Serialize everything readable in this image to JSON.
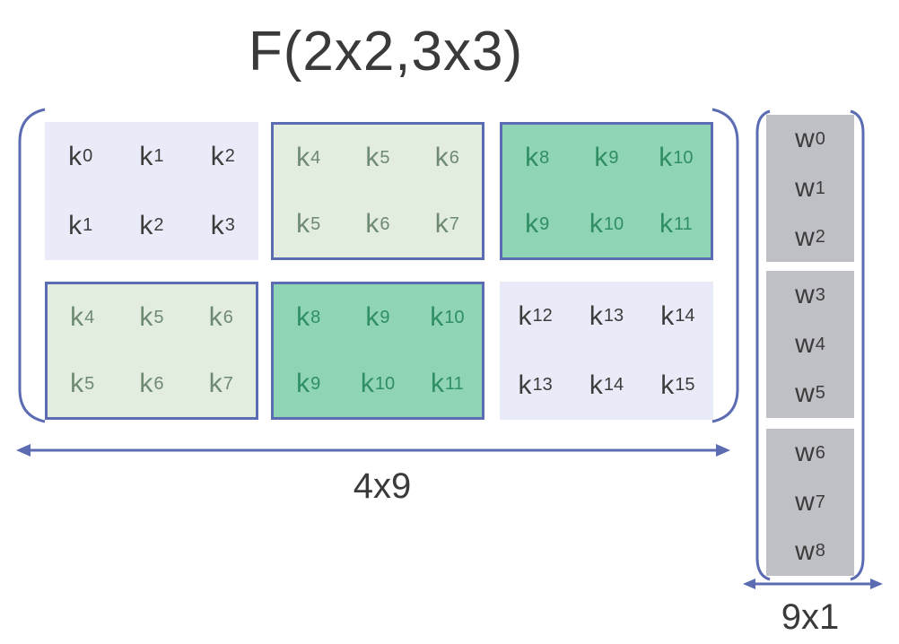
{
  "title": "F(2x2,3x3)",
  "matrix": {
    "dimension_label": "4x9",
    "rows": [
      [
        {
          "style": "plain",
          "cells": [
            [
              "k",
              "0"
            ],
            [
              "k",
              "1"
            ],
            [
              "k",
              "2"
            ],
            [
              "k",
              "1"
            ],
            [
              "k",
              "2"
            ],
            [
              "k",
              "3"
            ]
          ]
        },
        {
          "style": "light",
          "cells": [
            [
              "k",
              "4"
            ],
            [
              "k",
              "5"
            ],
            [
              "k",
              "6"
            ],
            [
              "k",
              "5"
            ],
            [
              "k",
              "6"
            ],
            [
              "k",
              "7"
            ]
          ]
        },
        {
          "style": "dark",
          "cells": [
            [
              "k",
              "8"
            ],
            [
              "k",
              "9"
            ],
            [
              "k",
              "10"
            ],
            [
              "k",
              "9"
            ],
            [
              "k",
              "10"
            ],
            [
              "k",
              "11"
            ]
          ]
        }
      ],
      [
        {
          "style": "light",
          "cells": [
            [
              "k",
              "4"
            ],
            [
              "k",
              "5"
            ],
            [
              "k",
              "6"
            ],
            [
              "k",
              "5"
            ],
            [
              "k",
              "6"
            ],
            [
              "k",
              "7"
            ]
          ]
        },
        {
          "style": "dark",
          "cells": [
            [
              "k",
              "8"
            ],
            [
              "k",
              "9"
            ],
            [
              "k",
              "10"
            ],
            [
              "k",
              "9"
            ],
            [
              "k",
              "10"
            ],
            [
              "k",
              "11"
            ]
          ]
        },
        {
          "style": "plain",
          "cells": [
            [
              "k",
              "12"
            ],
            [
              "k",
              "13"
            ],
            [
              "k",
              "14"
            ],
            [
              "k",
              "13"
            ],
            [
              "k",
              "14"
            ],
            [
              "k",
              "15"
            ]
          ]
        }
      ]
    ]
  },
  "vector": {
    "dimension_label": "9x1",
    "groups": [
      [
        [
          "w",
          "0"
        ],
        [
          "w",
          "1"
        ],
        [
          "w",
          "2"
        ]
      ],
      [
        [
          "w",
          "3"
        ],
        [
          "w",
          "4"
        ],
        [
          "w",
          "5"
        ]
      ],
      [
        [
          "w",
          "6"
        ],
        [
          "w",
          "7"
        ],
        [
          "w",
          "8"
        ]
      ]
    ]
  },
  "colors": {
    "bracket": "#5b6cb3",
    "plain_block": "#e9ecf8",
    "light_block": "#e2ecdf",
    "dark_block": "#8fd4b5",
    "weight_block": "#bfbfc6"
  }
}
